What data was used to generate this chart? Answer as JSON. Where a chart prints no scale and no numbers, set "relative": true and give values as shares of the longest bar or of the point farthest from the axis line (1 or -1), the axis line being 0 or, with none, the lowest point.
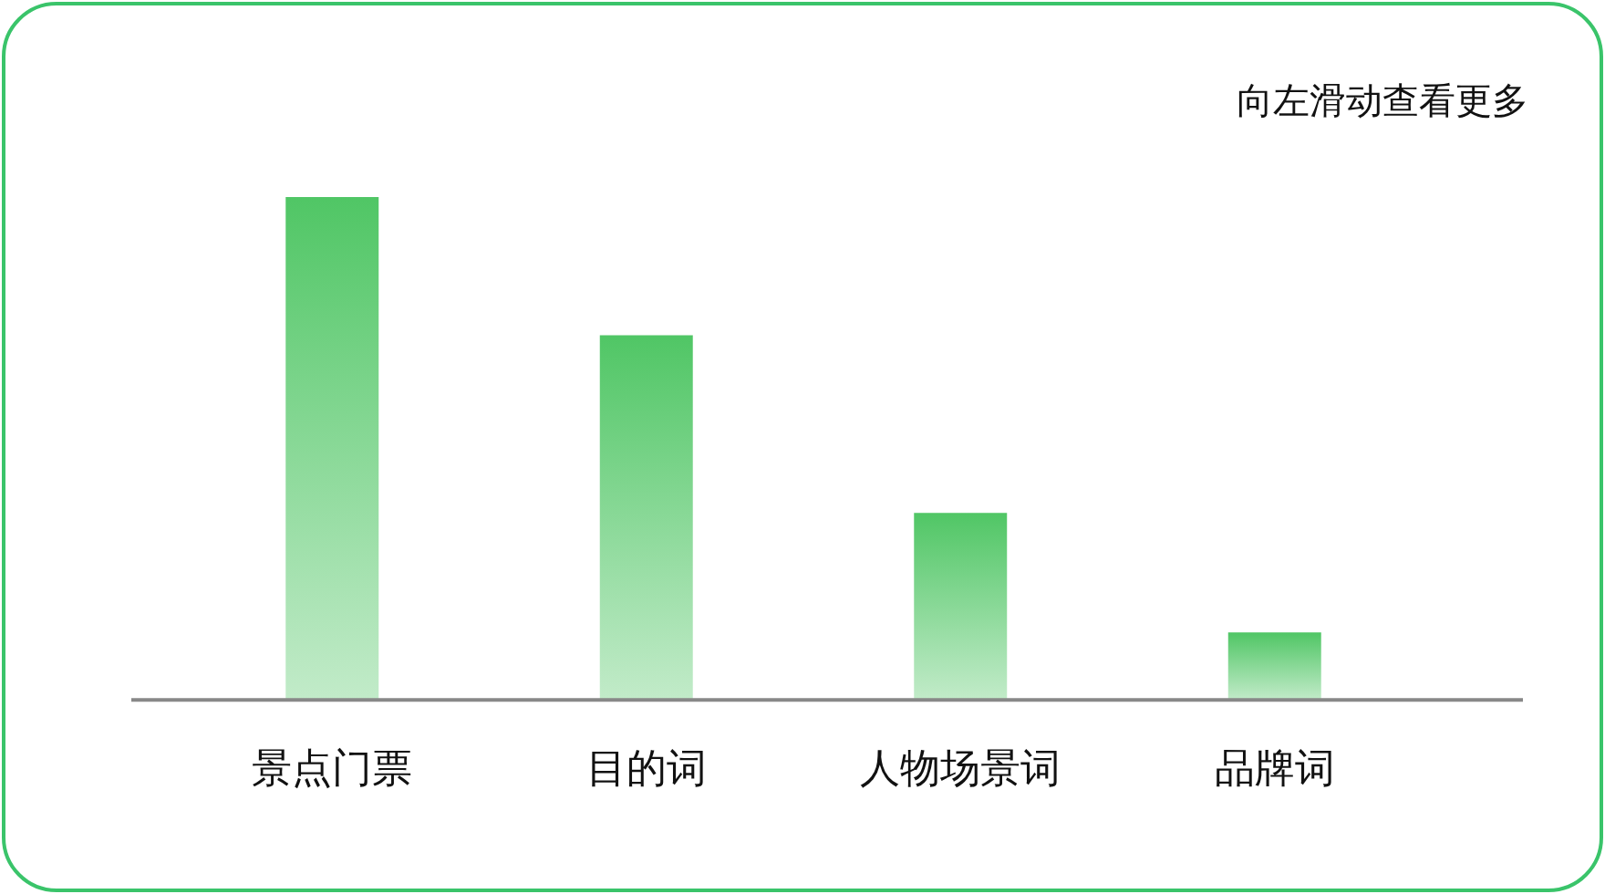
{
  "chart_data": {
    "type": "bar",
    "categories": [
      "景点门票",
      "目的词",
      "人物场景词",
      "品牌词"
    ],
    "values": [
      1,
      0.725,
      0.372,
      0.134
    ],
    "color": "#50c665",
    "relative": true,
    "annotations": [
      "向左滑动查看更多"
    ]
  }
}
